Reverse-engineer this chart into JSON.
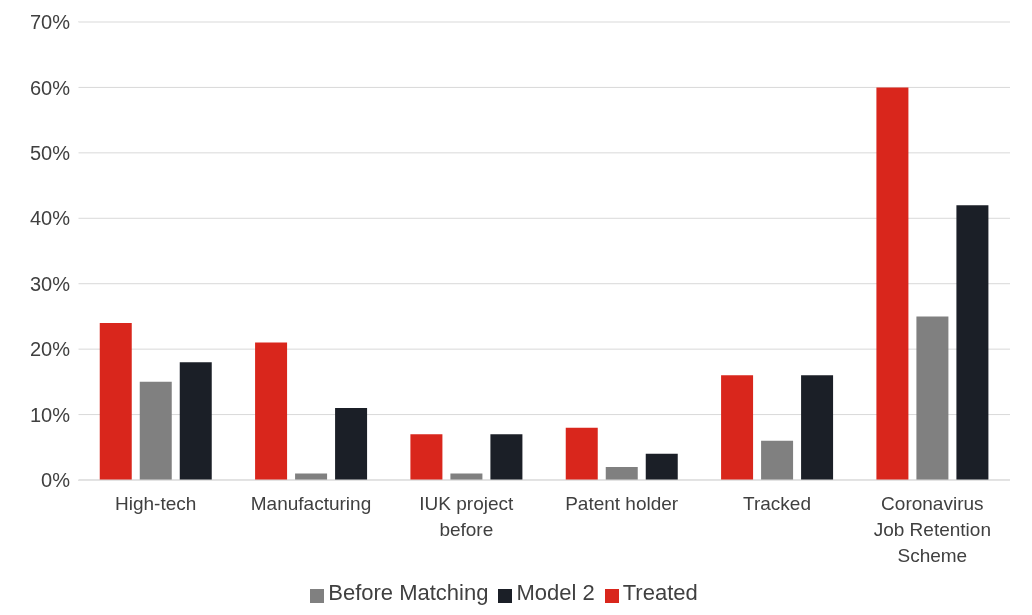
{
  "chart_data": {
    "type": "bar",
    "categories": [
      "High-tech",
      "Manufacturing",
      "IUK project before",
      "Patent holder",
      "Tracked",
      "Coronavirus Job Retention Scheme"
    ],
    "series": [
      {
        "name": "Treated",
        "color": "#d9261c",
        "values": [
          24,
          21,
          7,
          8,
          16,
          60
        ]
      },
      {
        "name": "Before Matching",
        "color": "#808080",
        "values": [
          15,
          1,
          1,
          2,
          6,
          25
        ]
      },
      {
        "name": "Model 2",
        "color": "#1b1f27",
        "values": [
          18,
          11,
          7,
          4,
          16,
          42
        ]
      }
    ],
    "ylim": [
      0,
      70
    ],
    "yticks": [
      {
        "value": 0,
        "label": "0%"
      },
      {
        "value": 10,
        "label": "10%"
      },
      {
        "value": 20,
        "label": "20%"
      },
      {
        "value": 30,
        "label": "30%"
      },
      {
        "value": 40,
        "label": "40%"
      },
      {
        "value": 50,
        "label": "50%"
      },
      {
        "value": 60,
        "label": "60%"
      },
      {
        "value": 70,
        "label": "70%"
      }
    ],
    "grid": "y",
    "legend": "bottom"
  }
}
